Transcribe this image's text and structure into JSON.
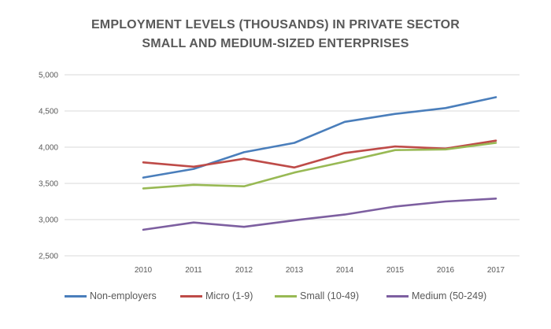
{
  "chart_data": {
    "type": "line",
    "title_line1": "EMPLOYMENT LEVELS (THOUSANDS) IN PRIVATE SECTOR",
    "title_line2": "SMALL AND MEDIUM-SIZED ENTERPRISES",
    "x": [
      "2010",
      "2011",
      "2012",
      "2013",
      "2014",
      "2015",
      "2016",
      "2017"
    ],
    "ylim": [
      2500,
      5000
    ],
    "yticks": [
      "2,500",
      "3,000",
      "3,500",
      "4,000",
      "4,500",
      "5,000"
    ],
    "ytick_values": [
      2500,
      3000,
      3500,
      4000,
      4500,
      5000
    ],
    "grid": true,
    "legend_position": "bottom",
    "series": [
      {
        "name": "Non-employers",
        "color": "#4a7ebb",
        "values": [
          3580,
          3700,
          3930,
          4060,
          4350,
          4460,
          4540,
          4690
        ]
      },
      {
        "name": "Micro (1-9)",
        "color": "#be4b48",
        "values": [
          3790,
          3730,
          3840,
          3720,
          3920,
          4010,
          3980,
          4090
        ]
      },
      {
        "name": "Small (10-49)",
        "color": "#98b954",
        "values": [
          3430,
          3480,
          3460,
          3650,
          3800,
          3960,
          3970,
          4060
        ]
      },
      {
        "name": "Medium (50-249)",
        "color": "#7d5fa0",
        "values": [
          2860,
          2960,
          2900,
          2990,
          3070,
          3180,
          3250,
          3290
        ]
      }
    ]
  }
}
